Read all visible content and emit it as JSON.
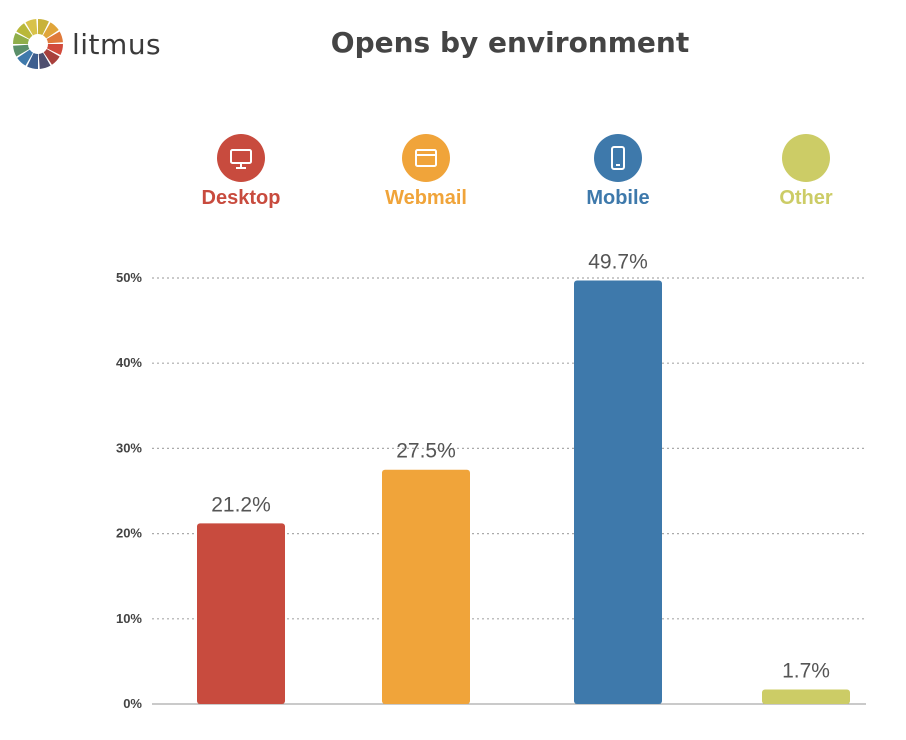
{
  "header": {
    "logo_text": "litmus",
    "title": "Opens by environment"
  },
  "chart_data": {
    "type": "bar",
    "title": "Opens by environment",
    "categories": [
      "Desktop",
      "Webmail",
      "Mobile",
      "Other"
    ],
    "values": [
      21.2,
      27.5,
      49.7,
      1.7
    ],
    "value_labels": [
      "21.2%",
      "27.5%",
      "49.7%",
      "1.7%"
    ],
    "colors": [
      "#c84b3e",
      "#f0a43a",
      "#3e79ab",
      "#cccc66"
    ],
    "icons": [
      "desktop-icon",
      "webmail-icon",
      "mobile-icon",
      "other-icon"
    ],
    "ylim": [
      0,
      50
    ],
    "yticks": [
      0,
      10,
      20,
      30,
      40,
      50
    ],
    "ytick_labels": [
      "0%",
      "10%",
      "20%",
      "30%",
      "40%",
      "50%"
    ],
    "grid": true,
    "legend_position": "top",
    "xlabel": "",
    "ylabel": ""
  }
}
